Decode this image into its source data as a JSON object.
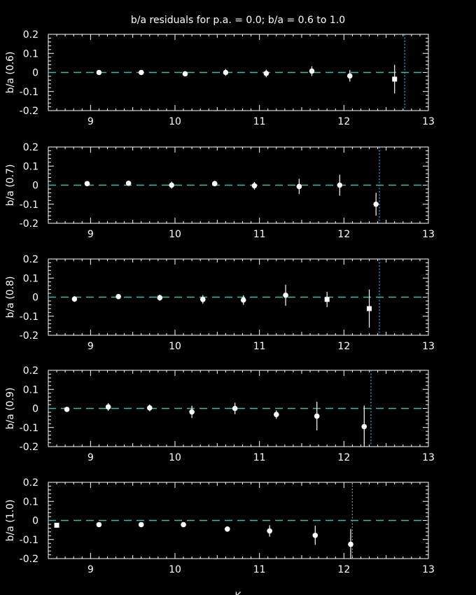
{
  "title": "b/a residuals for p.a. = 0.0; b/a = 0.6 to 1.0",
  "xlabel": "K",
  "colors": {
    "background": "#000000",
    "foreground": "#ffffff",
    "reference_line": "#3fb8b8",
    "limit_line": "#3fa8d8"
  },
  "chart_data": [
    {
      "type": "scatter",
      "ylabel": "b/a (0.6)",
      "xlim": [
        8.5,
        13
      ],
      "ylim": [
        -0.2,
        0.2
      ],
      "xticks": [
        "9",
        "10",
        "11",
        "12",
        "13"
      ],
      "yticks": [
        "0.2",
        "0.1",
        "0",
        "-0.1",
        "-0.2"
      ],
      "reference_y": 0,
      "limit_x": 12.72,
      "points": [
        {
          "x": 9.1,
          "y": 0.0,
          "err": 0.005,
          "marker": "circle"
        },
        {
          "x": 9.6,
          "y": 0.0,
          "err": 0.007,
          "marker": "circle"
        },
        {
          "x": 10.12,
          "y": -0.007,
          "err": 0.012,
          "marker": "circle"
        },
        {
          "x": 10.6,
          "y": 0.0,
          "err": 0.018,
          "marker": "circle"
        },
        {
          "x": 11.08,
          "y": -0.005,
          "err": 0.02,
          "marker": "circle"
        },
        {
          "x": 11.62,
          "y": 0.007,
          "err": 0.025,
          "marker": "circle"
        },
        {
          "x": 12.07,
          "y": -0.018,
          "err": 0.03,
          "marker": "circle"
        },
        {
          "x": 12.6,
          "y": -0.035,
          "err": 0.075,
          "marker": "square"
        }
      ]
    },
    {
      "type": "scatter",
      "ylabel": "b/a (0.7)",
      "xlim": [
        8.5,
        13
      ],
      "ylim": [
        -0.2,
        0.2
      ],
      "xticks": [
        "9",
        "10",
        "11",
        "12",
        "13"
      ],
      "yticks": [
        "0.2",
        "0.1",
        "0",
        "-0.1",
        "-0.2"
      ],
      "reference_y": 0,
      "limit_x": 12.42,
      "points": [
        {
          "x": 8.96,
          "y": 0.008,
          "err": 0.01,
          "marker": "circle"
        },
        {
          "x": 9.45,
          "y": 0.01,
          "err": 0.006,
          "marker": "circle"
        },
        {
          "x": 9.96,
          "y": 0.0,
          "err": 0.018,
          "marker": "circle"
        },
        {
          "x": 10.47,
          "y": 0.008,
          "err": 0.015,
          "marker": "circle"
        },
        {
          "x": 10.94,
          "y": -0.003,
          "err": 0.02,
          "marker": "circle"
        },
        {
          "x": 11.47,
          "y": -0.007,
          "err": 0.04,
          "marker": "circle"
        },
        {
          "x": 11.95,
          "y": 0.0,
          "err": 0.055,
          "marker": "circle"
        },
        {
          "x": 12.38,
          "y": -0.1,
          "err": 0.06,
          "marker": "circle"
        }
      ]
    },
    {
      "type": "scatter",
      "ylabel": "b/a (0.8)",
      "xlim": [
        8.5,
        13
      ],
      "ylim": [
        -0.2,
        0.2
      ],
      "xticks": [
        "9",
        "10",
        "11",
        "12",
        "13"
      ],
      "yticks": [
        "0.2",
        "0.1",
        "0",
        "-0.1",
        "-0.2"
      ],
      "reference_y": 0,
      "limit_x": 12.42,
      "points": [
        {
          "x": 8.81,
          "y": -0.01,
          "err": 0.015,
          "marker": "circle"
        },
        {
          "x": 9.33,
          "y": 0.003,
          "err": 0.01,
          "marker": "circle"
        },
        {
          "x": 9.82,
          "y": -0.003,
          "err": 0.016,
          "marker": "circle"
        },
        {
          "x": 10.33,
          "y": -0.012,
          "err": 0.022,
          "marker": "circle"
        },
        {
          "x": 10.81,
          "y": -0.015,
          "err": 0.025,
          "marker": "circle"
        },
        {
          "x": 11.31,
          "y": 0.01,
          "err": 0.055,
          "marker": "circle"
        },
        {
          "x": 11.8,
          "y": -0.012,
          "err": 0.04,
          "marker": "square"
        },
        {
          "x": 12.3,
          "y": -0.06,
          "err": 0.1,
          "marker": "square"
        }
      ]
    },
    {
      "type": "scatter",
      "ylabel": "b/a (0.9)",
      "xlim": [
        8.5,
        13
      ],
      "ylim": [
        -0.2,
        0.2
      ],
      "xticks": [
        "9",
        "10",
        "11",
        "12",
        "13"
      ],
      "yticks": [
        "0.2",
        "0.1",
        "0",
        "-0.1",
        "-0.2"
      ],
      "reference_y": 0,
      "limit_x": 12.32,
      "points": [
        {
          "x": 8.72,
          "y": -0.005,
          "err": 0.013,
          "marker": "circle"
        },
        {
          "x": 9.21,
          "y": 0.008,
          "err": 0.02,
          "marker": "circle"
        },
        {
          "x": 9.7,
          "y": 0.003,
          "err": 0.018,
          "marker": "circle"
        },
        {
          "x": 10.2,
          "y": -0.018,
          "err": 0.032,
          "marker": "circle"
        },
        {
          "x": 10.71,
          "y": 0.0,
          "err": 0.03,
          "marker": "circle"
        },
        {
          "x": 11.2,
          "y": -0.032,
          "err": 0.022,
          "marker": "circle"
        },
        {
          "x": 11.68,
          "y": -0.04,
          "err": 0.075,
          "marker": "circle"
        },
        {
          "x": 12.24,
          "y": -0.095,
          "err": 0.11,
          "marker": "circle"
        }
      ]
    },
    {
      "type": "scatter",
      "ylabel": "b/a (1.0)",
      "xlim": [
        8.5,
        13
      ],
      "ylim": [
        -0.2,
        0.2
      ],
      "xticks": [
        "9",
        "10",
        "11",
        "12",
        "13"
      ],
      "yticks": [
        "0.2",
        "0.1",
        "0",
        "-0.1",
        "-0.2"
      ],
      "reference_y": 0,
      "limit_x": 12.1,
      "points": [
        {
          "x": 8.6,
          "y": -0.025,
          "err": 0.005,
          "marker": "square"
        },
        {
          "x": 9.1,
          "y": -0.022,
          "err": 0.006,
          "marker": "circle"
        },
        {
          "x": 9.6,
          "y": -0.022,
          "err": 0.01,
          "marker": "circle"
        },
        {
          "x": 10.1,
          "y": -0.022,
          "err": 0.012,
          "marker": "circle"
        },
        {
          "x": 10.62,
          "y": -0.045,
          "err": 0.014,
          "marker": "circle"
        },
        {
          "x": 11.12,
          "y": -0.055,
          "err": 0.03,
          "marker": "circle"
        },
        {
          "x": 11.66,
          "y": -0.078,
          "err": 0.05,
          "marker": "circle"
        },
        {
          "x": 12.08,
          "y": -0.125,
          "err": 0.08,
          "marker": "circle"
        }
      ]
    }
  ]
}
